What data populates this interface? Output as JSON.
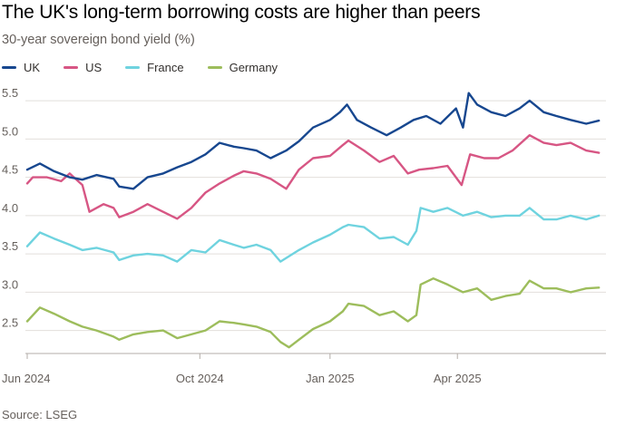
{
  "title": "The UK's long-term borrowing costs are higher than peers",
  "subtitle": "30-year sovereign bond yield (%)",
  "source": "Source: LSEG",
  "colors": {
    "UK": "#17478f",
    "US": "#d75684",
    "France": "#6fd3df",
    "Germany": "#9dbd5c",
    "grid": "#e2dfdb",
    "axis": "#66605c"
  },
  "chart_data": {
    "type": "line",
    "title": "The UK's long-term borrowing costs are higher than peers",
    "ylabel": "30-year sovereign bond yield (%)",
    "xlabel": "",
    "xlim": [
      "2024-06-01",
      "2025-07-15"
    ],
    "ylim": [
      2.2,
      5.75
    ],
    "yticks": [
      2.5,
      3.0,
      3.5,
      4.0,
      4.5,
      5.0,
      5.5
    ],
    "ytick_labels": [
      "2.5",
      "3.0",
      "3.5",
      "4.0",
      "4.5",
      "5.0",
      "5.5"
    ],
    "xticks": [
      "2024-06-01",
      "2024-10-01",
      "2025-01-01",
      "2025-04-01"
    ],
    "xtick_labels": [
      "Jun 2024",
      "Oct 2024",
      "Jan 2025",
      "Apr 2025"
    ],
    "grid": true,
    "legend": "top-left",
    "series": [
      {
        "name": "UK",
        "x": [
          "2024-06-01",
          "2024-06-10",
          "2024-06-20",
          "2024-07-01",
          "2024-07-10",
          "2024-07-20",
          "2024-08-01",
          "2024-08-05",
          "2024-08-15",
          "2024-08-25",
          "2024-09-05",
          "2024-09-15",
          "2024-09-25",
          "2024-10-05",
          "2024-10-15",
          "2024-10-25",
          "2024-11-01",
          "2024-11-10",
          "2024-11-20",
          "2024-12-01",
          "2024-12-10",
          "2024-12-20",
          "2025-01-01",
          "2025-01-08",
          "2025-01-13",
          "2025-01-20",
          "2025-01-30",
          "2025-02-10",
          "2025-02-20",
          "2025-03-01",
          "2025-03-10",
          "2025-03-20",
          "2025-03-31",
          "2025-04-05",
          "2025-04-09",
          "2025-04-15",
          "2025-04-25",
          "2025-05-05",
          "2025-05-15",
          "2025-05-22",
          "2025-06-01",
          "2025-06-10",
          "2025-06-20",
          "2025-07-01",
          "2025-07-10"
        ],
        "values": [
          4.6,
          4.68,
          4.58,
          4.5,
          4.47,
          4.53,
          4.48,
          4.38,
          4.35,
          4.5,
          4.55,
          4.63,
          4.7,
          4.8,
          4.95,
          4.9,
          4.88,
          4.85,
          4.75,
          4.85,
          4.97,
          5.15,
          5.25,
          5.35,
          5.45,
          5.25,
          5.15,
          5.05,
          5.15,
          5.25,
          5.3,
          5.2,
          5.4,
          5.15,
          5.6,
          5.45,
          5.35,
          5.3,
          5.4,
          5.5,
          5.35,
          5.3,
          5.25,
          5.2,
          5.24
        ]
      },
      {
        "name": "US",
        "x": [
          "2024-06-01",
          "2024-06-05",
          "2024-06-15",
          "2024-06-25",
          "2024-07-01",
          "2024-07-10",
          "2024-07-15",
          "2024-07-25",
          "2024-08-01",
          "2024-08-05",
          "2024-08-15",
          "2024-08-25",
          "2024-09-05",
          "2024-09-15",
          "2024-09-25",
          "2024-10-05",
          "2024-10-15",
          "2024-10-25",
          "2024-11-01",
          "2024-11-10",
          "2024-11-20",
          "2024-12-01",
          "2024-12-10",
          "2024-12-20",
          "2025-01-01",
          "2025-01-10",
          "2025-01-14",
          "2025-01-25",
          "2025-02-05",
          "2025-02-15",
          "2025-02-25",
          "2025-03-05",
          "2025-03-15",
          "2025-03-25",
          "2025-04-04",
          "2025-04-10",
          "2025-04-20",
          "2025-04-30",
          "2025-05-10",
          "2025-05-22",
          "2025-06-01",
          "2025-06-10",
          "2025-06-20",
          "2025-07-01",
          "2025-07-10"
        ],
        "values": [
          4.42,
          4.5,
          4.5,
          4.45,
          4.55,
          4.4,
          4.05,
          4.15,
          4.1,
          3.98,
          4.05,
          4.15,
          4.05,
          3.96,
          4.1,
          4.3,
          4.42,
          4.52,
          4.58,
          4.55,
          4.48,
          4.35,
          4.6,
          4.75,
          4.78,
          4.92,
          4.98,
          4.85,
          4.7,
          4.78,
          4.55,
          4.6,
          4.62,
          4.65,
          4.4,
          4.8,
          4.75,
          4.75,
          4.85,
          5.05,
          4.95,
          4.92,
          4.95,
          4.85,
          4.82
        ]
      },
      {
        "name": "France",
        "x": [
          "2024-06-01",
          "2024-06-10",
          "2024-06-20",
          "2024-07-01",
          "2024-07-10",
          "2024-07-20",
          "2024-08-01",
          "2024-08-05",
          "2024-08-15",
          "2024-08-25",
          "2024-09-05",
          "2024-09-15",
          "2024-09-25",
          "2024-10-05",
          "2024-10-15",
          "2024-10-25",
          "2024-11-01",
          "2024-11-10",
          "2024-11-20",
          "2024-11-27",
          "2024-12-10",
          "2024-12-20",
          "2025-01-01",
          "2025-01-10",
          "2025-01-14",
          "2025-01-25",
          "2025-02-05",
          "2025-02-15",
          "2025-02-25",
          "2025-03-03",
          "2025-03-06",
          "2025-03-15",
          "2025-03-25",
          "2025-04-05",
          "2025-04-15",
          "2025-04-25",
          "2025-05-05",
          "2025-05-15",
          "2025-05-22",
          "2025-06-01",
          "2025-06-10",
          "2025-06-20",
          "2025-07-01",
          "2025-07-10"
        ],
        "values": [
          3.6,
          3.78,
          3.7,
          3.62,
          3.55,
          3.58,
          3.52,
          3.42,
          3.48,
          3.5,
          3.48,
          3.4,
          3.55,
          3.52,
          3.68,
          3.62,
          3.58,
          3.62,
          3.55,
          3.4,
          3.55,
          3.65,
          3.75,
          3.85,
          3.88,
          3.85,
          3.7,
          3.72,
          3.62,
          3.8,
          4.1,
          4.05,
          4.1,
          4.0,
          4.05,
          3.98,
          4.0,
          4.0,
          4.1,
          3.95,
          3.95,
          4.0,
          3.95,
          4.0
        ]
      },
      {
        "name": "Germany",
        "x": [
          "2024-06-01",
          "2024-06-10",
          "2024-06-20",
          "2024-07-01",
          "2024-07-10",
          "2024-07-20",
          "2024-08-01",
          "2024-08-05",
          "2024-08-15",
          "2024-08-25",
          "2024-09-05",
          "2024-09-15",
          "2024-09-25",
          "2024-10-05",
          "2024-10-15",
          "2024-10-25",
          "2024-11-01",
          "2024-11-10",
          "2024-11-20",
          "2024-11-27",
          "2024-12-03",
          "2024-12-10",
          "2024-12-20",
          "2025-01-01",
          "2025-01-10",
          "2025-01-14",
          "2025-01-25",
          "2025-02-05",
          "2025-02-15",
          "2025-02-25",
          "2025-03-03",
          "2025-03-06",
          "2025-03-15",
          "2025-03-25",
          "2025-04-05",
          "2025-04-15",
          "2025-04-25",
          "2025-05-05",
          "2025-05-15",
          "2025-05-22",
          "2025-06-01",
          "2025-06-10",
          "2025-06-20",
          "2025-07-01",
          "2025-07-10"
        ],
        "values": [
          2.62,
          2.8,
          2.72,
          2.62,
          2.55,
          2.5,
          2.42,
          2.38,
          2.45,
          2.48,
          2.5,
          2.4,
          2.45,
          2.5,
          2.62,
          2.6,
          2.58,
          2.55,
          2.48,
          2.35,
          2.28,
          2.38,
          2.52,
          2.62,
          2.75,
          2.85,
          2.82,
          2.7,
          2.75,
          2.62,
          2.7,
          3.1,
          3.18,
          3.1,
          3.0,
          3.05,
          2.9,
          2.95,
          2.98,
          3.15,
          3.05,
          3.05,
          3.0,
          3.05,
          3.06
        ]
      }
    ]
  }
}
